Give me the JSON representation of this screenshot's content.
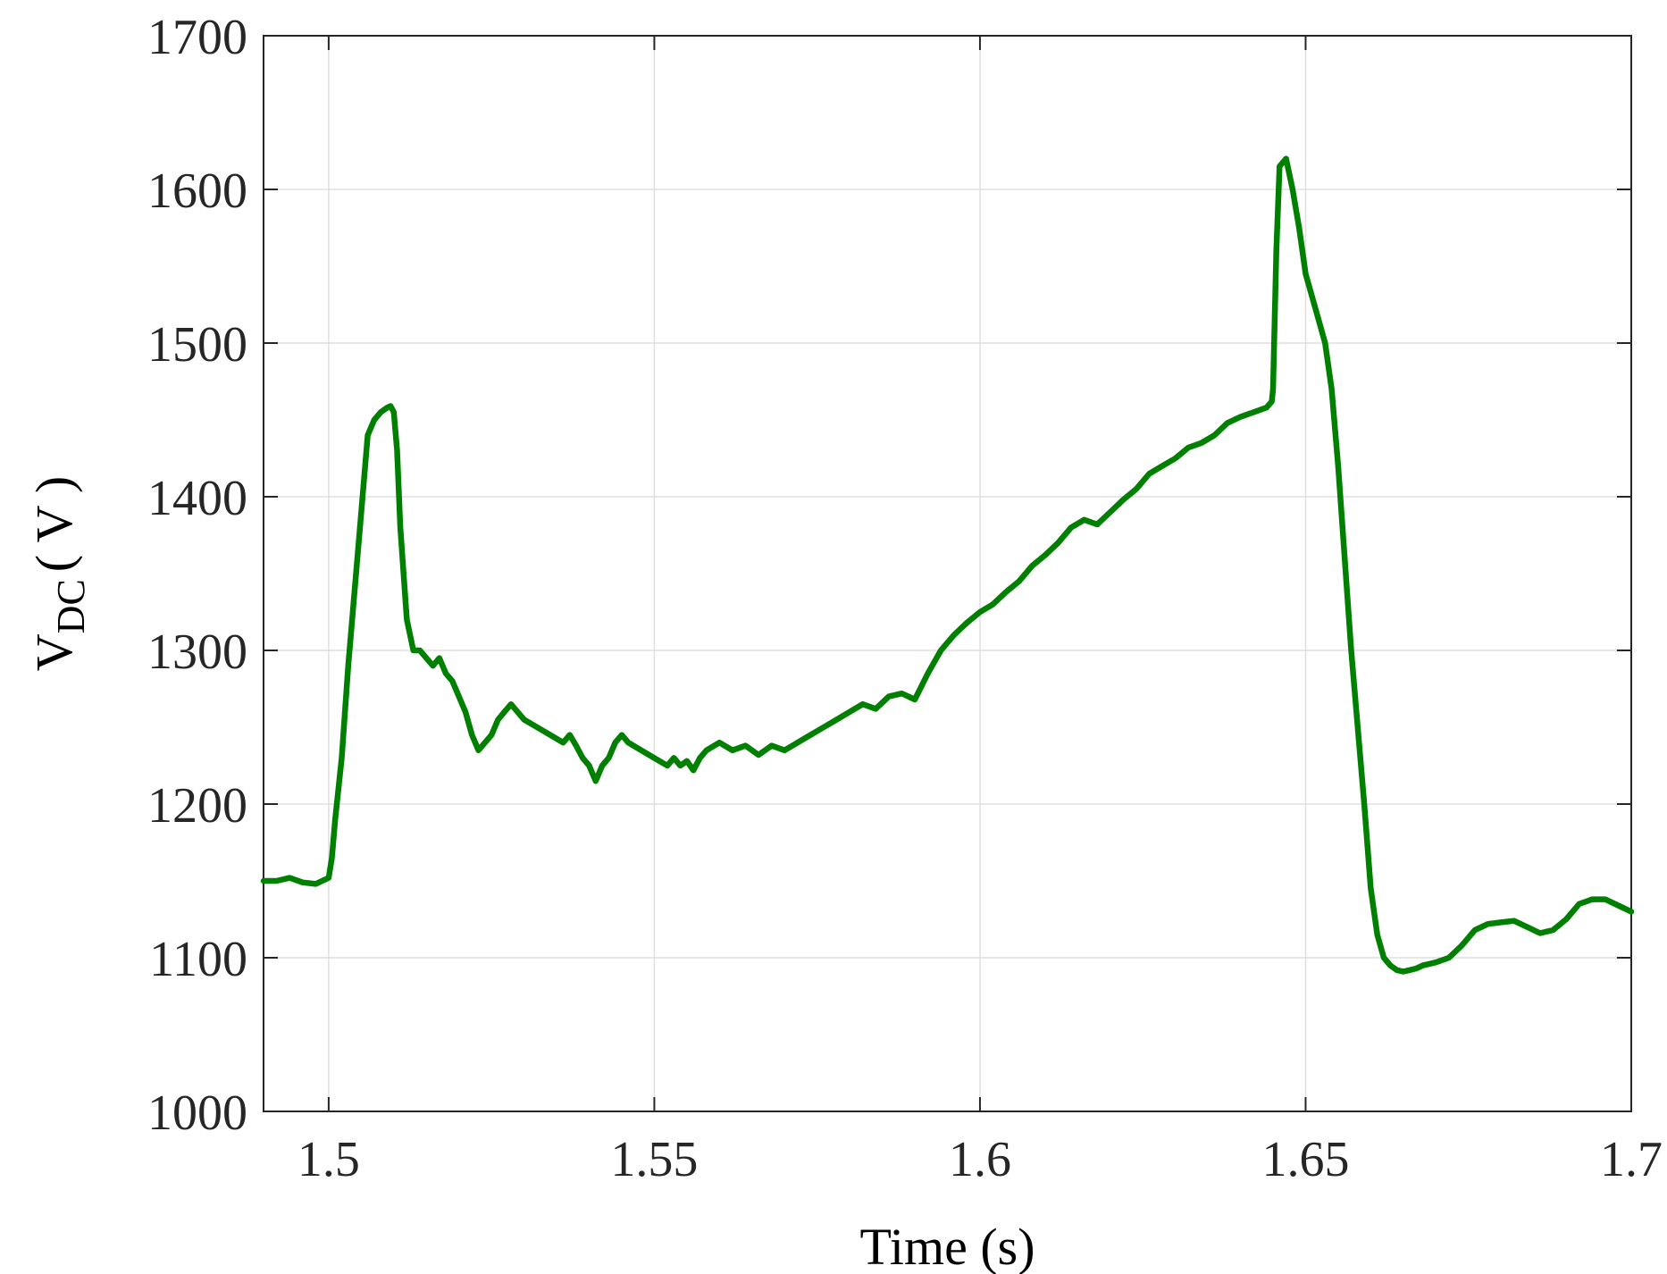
{
  "chart_data": {
    "type": "line",
    "title": "",
    "xlabel": "Time (s)",
    "ylabel": {
      "main": "V",
      "subscript": "DC",
      "unit": "( V )"
    },
    "xlim": [
      1.49,
      1.7
    ],
    "ylim": [
      1000,
      1700
    ],
    "xticks": [
      1.5,
      1.55,
      1.6,
      1.65,
      1.7
    ],
    "xtick_labels": [
      "1.5",
      "1.55",
      "1.6",
      "1.65",
      "1.7"
    ],
    "yticks": [
      1000,
      1100,
      1200,
      1300,
      1400,
      1500,
      1600,
      1700
    ],
    "ytick_labels": [
      "1000",
      "1100",
      "1200",
      "1300",
      "1400",
      "1500",
      "1600",
      "1700"
    ],
    "grid": true,
    "series": [
      {
        "color": "#008000",
        "x": [
          1.49,
          1.492,
          1.494,
          1.496,
          1.498,
          1.5,
          1.5005,
          1.501,
          1.502,
          1.503,
          1.504,
          1.505,
          1.506,
          1.507,
          1.508,
          1.509,
          1.5095,
          1.51,
          1.5105,
          1.511,
          1.512,
          1.513,
          1.514,
          1.515,
          1.516,
          1.517,
          1.518,
          1.519,
          1.52,
          1.521,
          1.522,
          1.523,
          1.524,
          1.525,
          1.526,
          1.527,
          1.528,
          1.529,
          1.53,
          1.532,
          1.534,
          1.536,
          1.537,
          1.538,
          1.539,
          1.54,
          1.541,
          1.542,
          1.543,
          1.544,
          1.545,
          1.546,
          1.548,
          1.55,
          1.552,
          1.553,
          1.554,
          1.555,
          1.556,
          1.557,
          1.558,
          1.56,
          1.562,
          1.564,
          1.566,
          1.568,
          1.57,
          1.572,
          1.574,
          1.576,
          1.578,
          1.58,
          1.582,
          1.584,
          1.586,
          1.588,
          1.59,
          1.592,
          1.594,
          1.596,
          1.598,
          1.6,
          1.602,
          1.604,
          1.606,
          1.608,
          1.61,
          1.612,
          1.614,
          1.616,
          1.618,
          1.62,
          1.622,
          1.624,
          1.626,
          1.628,
          1.63,
          1.632,
          1.634,
          1.636,
          1.638,
          1.64,
          1.642,
          1.644,
          1.6448,
          1.645,
          1.6455,
          1.646,
          1.647,
          1.648,
          1.649,
          1.65,
          1.651,
          1.652,
          1.653,
          1.654,
          1.655,
          1.656,
          1.657,
          1.658,
          1.659,
          1.66,
          1.661,
          1.662,
          1.663,
          1.664,
          1.665,
          1.666,
          1.667,
          1.668,
          1.669,
          1.67,
          1.672,
          1.674,
          1.676,
          1.678,
          1.68,
          1.682,
          1.684,
          1.686,
          1.688,
          1.69,
          1.692,
          1.694,
          1.696,
          1.698,
          1.7
        ],
        "y": [
          1150,
          1150,
          1152,
          1149,
          1148,
          1152,
          1165,
          1190,
          1230,
          1290,
          1340,
          1390,
          1440,
          1450,
          1455,
          1458,
          1459,
          1455,
          1430,
          1380,
          1320,
          1300,
          1300,
          1295,
          1290,
          1295,
          1285,
          1280,
          1270,
          1260,
          1245,
          1235,
          1240,
          1245,
          1255,
          1260,
          1265,
          1260,
          1255,
          1250,
          1245,
          1240,
          1245,
          1238,
          1230,
          1225,
          1215,
          1225,
          1230,
          1240,
          1245,
          1240,
          1235,
          1230,
          1225,
          1230,
          1225,
          1228,
          1222,
          1230,
          1235,
          1240,
          1235,
          1238,
          1232,
          1238,
          1235,
          1240,
          1245,
          1250,
          1255,
          1260,
          1265,
          1262,
          1270,
          1272,
          1268,
          1285,
          1300,
          1310,
          1318,
          1325,
          1330,
          1338,
          1345,
          1355,
          1362,
          1370,
          1380,
          1385,
          1382,
          1390,
          1398,
          1405,
          1415,
          1420,
          1425,
          1432,
          1435,
          1440,
          1448,
          1452,
          1455,
          1458,
          1462,
          1470,
          1560,
          1615,
          1620,
          1600,
          1575,
          1545,
          1530,
          1515,
          1500,
          1470,
          1420,
          1360,
          1300,
          1250,
          1200,
          1145,
          1115,
          1100,
          1095,
          1092,
          1091,
          1092,
          1093,
          1095,
          1096,
          1097,
          1100,
          1108,
          1118,
          1122,
          1123,
          1124,
          1120,
          1116,
          1118,
          1125,
          1135,
          1138,
          1138,
          1134,
          1130
        ]
      }
    ]
  }
}
